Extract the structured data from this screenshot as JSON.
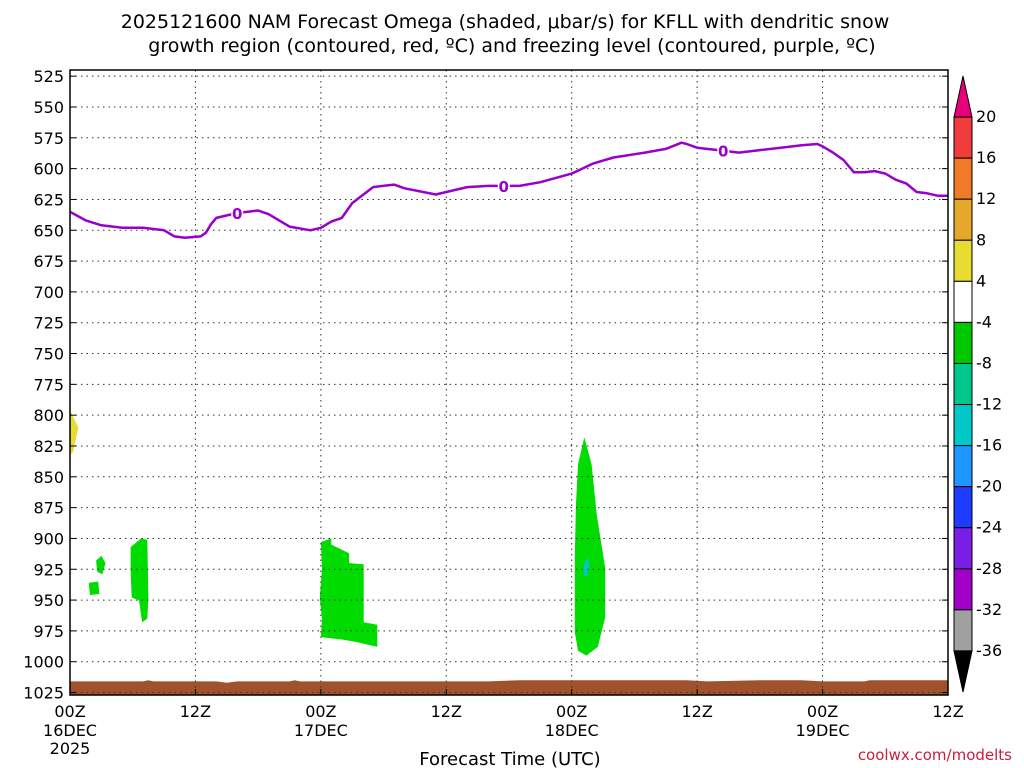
{
  "chart_data": {
    "type": "heatmap",
    "title_line1": "2025121600 NAM Forecast Omega (shaded, μbar/s) for KFLL with dendritic snow",
    "title_line2": "growth region (contoured, red, ºC) and freezing level (contoured, purple, ºC)",
    "xlabel": "Forecast Time (UTC)",
    "credit": "coolwx.com/modelts",
    "x_ticks": [
      {
        "hour": 0,
        "top": "00Z",
        "mid": "16DEC",
        "bot": "2025"
      },
      {
        "hour": 12,
        "top": "12Z",
        "mid": "",
        "bot": ""
      },
      {
        "hour": 24,
        "top": "00Z",
        "mid": "17DEC",
        "bot": ""
      },
      {
        "hour": 36,
        "top": "12Z",
        "mid": "",
        "bot": ""
      },
      {
        "hour": 48,
        "top": "00Z",
        "mid": "18DEC",
        "bot": ""
      },
      {
        "hour": 60,
        "top": "12Z",
        "mid": "",
        "bot": ""
      },
      {
        "hour": 72,
        "top": "00Z",
        "mid": "19DEC",
        "bot": ""
      },
      {
        "hour": 84,
        "top": "12Z",
        "mid": "",
        "bot": ""
      }
    ],
    "xlim_hours": [
      0,
      84
    ],
    "y_ticks": [
      "525",
      "550",
      "575",
      "600",
      "625",
      "650",
      "675",
      "700",
      "725",
      "750",
      "775",
      "800",
      "825",
      "850",
      "875",
      "900",
      "925",
      "950",
      "975",
      "1000",
      "1025"
    ],
    "ylim_hpa": [
      520,
      1027
    ],
    "grid": true,
    "colorbar": {
      "labels": [
        "20",
        "16",
        "12",
        "8",
        "4",
        "-4",
        "-8",
        "-12",
        "-16",
        "-20",
        "-24",
        "-28",
        "-32",
        "-36"
      ],
      "colors": [
        "#e8007a",
        "#f03c3c",
        "#f07a2a",
        "#e6a82a",
        "#e6dc32",
        "#ffffff",
        "#00c800",
        "#00c88c",
        "#00c8c8",
        "#1e96ff",
        "#1e3cff",
        "#7a1ee6",
        "#a000c8",
        "#a0a0a0",
        "#000000"
      ]
    },
    "freezing_level": {
      "label": "0",
      "color": "#9900cc",
      "label_hours": [
        16,
        41.5,
        62.5
      ],
      "points": [
        [
          0,
          635
        ],
        [
          1.5,
          642
        ],
        [
          3,
          646
        ],
        [
          5,
          648
        ],
        [
          7,
          648
        ],
        [
          9,
          650
        ],
        [
          10,
          655
        ],
        [
          11,
          656
        ],
        [
          12.5,
          655
        ],
        [
          13,
          652
        ],
        [
          13.5,
          645
        ],
        [
          14,
          640
        ],
        [
          16,
          636
        ],
        [
          18,
          634
        ],
        [
          19,
          637
        ],
        [
          21,
          647
        ],
        [
          23,
          650
        ],
        [
          24,
          648
        ],
        [
          25,
          643
        ],
        [
          26,
          640
        ],
        [
          27,
          628
        ],
        [
          29,
          615
        ],
        [
          31,
          613
        ],
        [
          32,
          616
        ],
        [
          35,
          621
        ],
        [
          36,
          619
        ],
        [
          38,
          615
        ],
        [
          40,
          614
        ],
        [
          43,
          614
        ],
        [
          45,
          611
        ],
        [
          48,
          604
        ],
        [
          50,
          596
        ],
        [
          52,
          591
        ],
        [
          55,
          587
        ],
        [
          57,
          584
        ],
        [
          58.5,
          579
        ],
        [
          59,
          580
        ],
        [
          60,
          583
        ],
        [
          62,
          585
        ],
        [
          64,
          587
        ],
        [
          66,
          585
        ],
        [
          68,
          583
        ],
        [
          70,
          581
        ],
        [
          71.5,
          580
        ],
        [
          72,
          582
        ],
        [
          73,
          587
        ],
        [
          74,
          593
        ],
        [
          75,
          603
        ],
        [
          76,
          603
        ],
        [
          77,
          602
        ],
        [
          78,
          604
        ],
        [
          79,
          609
        ],
        [
          80,
          612
        ],
        [
          81,
          619
        ],
        [
          82,
          620
        ],
        [
          83,
          622
        ],
        [
          84,
          622
        ]
      ]
    },
    "omega_regions": [
      {
        "color": "#e6dc32",
        "points": [
          [
            0,
            796
          ],
          [
            0.8,
            810
          ],
          [
            0.3,
            830
          ],
          [
            0,
            832
          ]
        ]
      },
      {
        "color": "#00dc00",
        "points": [
          [
            2.5,
            918
          ],
          [
            3,
            914
          ],
          [
            3.4,
            920
          ],
          [
            3.1,
            929
          ],
          [
            2.6,
            927
          ]
        ]
      },
      {
        "color": "#00dc00",
        "points": [
          [
            1.8,
            936
          ],
          [
            2.7,
            935
          ],
          [
            2.8,
            945
          ],
          [
            1.9,
            946
          ]
        ]
      },
      {
        "color": "#00dc00",
        "points": [
          [
            5.8,
            907
          ],
          [
            6.8,
            900
          ],
          [
            7.4,
            901
          ],
          [
            7.5,
            948
          ],
          [
            7.4,
            965
          ],
          [
            6.9,
            968
          ],
          [
            6.6,
            950
          ],
          [
            5.9,
            948
          ],
          [
            5.8,
            925
          ]
        ]
      },
      {
        "color": "#00dc00",
        "points": [
          [
            24,
            903
          ],
          [
            25,
            900
          ],
          [
            25,
            905
          ],
          [
            26.7,
            912
          ],
          [
            26.7,
            920
          ],
          [
            28.1,
            921
          ],
          [
            28.1,
            968
          ],
          [
            29.4,
            970
          ],
          [
            29.4,
            988
          ],
          [
            27.4,
            984
          ],
          [
            26,
            982
          ],
          [
            24,
            980
          ],
          [
            24.1,
            965
          ],
          [
            23.9,
            948
          ],
          [
            24.1,
            925
          ]
        ]
      },
      {
        "color": "#00dc00",
        "points": [
          [
            48.6,
            840
          ],
          [
            49.2,
            818
          ],
          [
            49.5,
            827
          ],
          [
            49.9,
            840
          ],
          [
            50.4,
            881
          ],
          [
            51.2,
            924
          ],
          [
            51.2,
            964
          ],
          [
            50.5,
            988
          ],
          [
            49.4,
            995
          ],
          [
            48.6,
            991
          ],
          [
            48.3,
            976
          ],
          [
            48.3,
            915
          ],
          [
            48.4,
            873
          ]
        ]
      },
      {
        "color": "#00c8c8",
        "points": [
          [
            49.2,
            920
          ],
          [
            49.5,
            915
          ],
          [
            49.7,
            922
          ],
          [
            49.4,
            932
          ],
          [
            49.1,
            928
          ]
        ]
      }
    ],
    "terrain": {
      "color": "#a0522d",
      "points": [
        [
          0,
          1016
        ],
        [
          7,
          1016
        ],
        [
          7.5,
          1015
        ],
        [
          8,
          1016
        ],
        [
          14,
          1016
        ],
        [
          15,
          1017
        ],
        [
          16,
          1016
        ],
        [
          21,
          1016
        ],
        [
          21.5,
          1015
        ],
        [
          22,
          1016
        ],
        [
          30,
          1016
        ],
        [
          40,
          1016
        ],
        [
          43,
          1015
        ],
        [
          59,
          1015
        ],
        [
          61,
          1016
        ],
        [
          66,
          1015
        ],
        [
          70,
          1015
        ],
        [
          72,
          1016
        ],
        [
          76,
          1016
        ],
        [
          76.5,
          1015
        ],
        [
          84,
          1015
        ]
      ]
    }
  }
}
